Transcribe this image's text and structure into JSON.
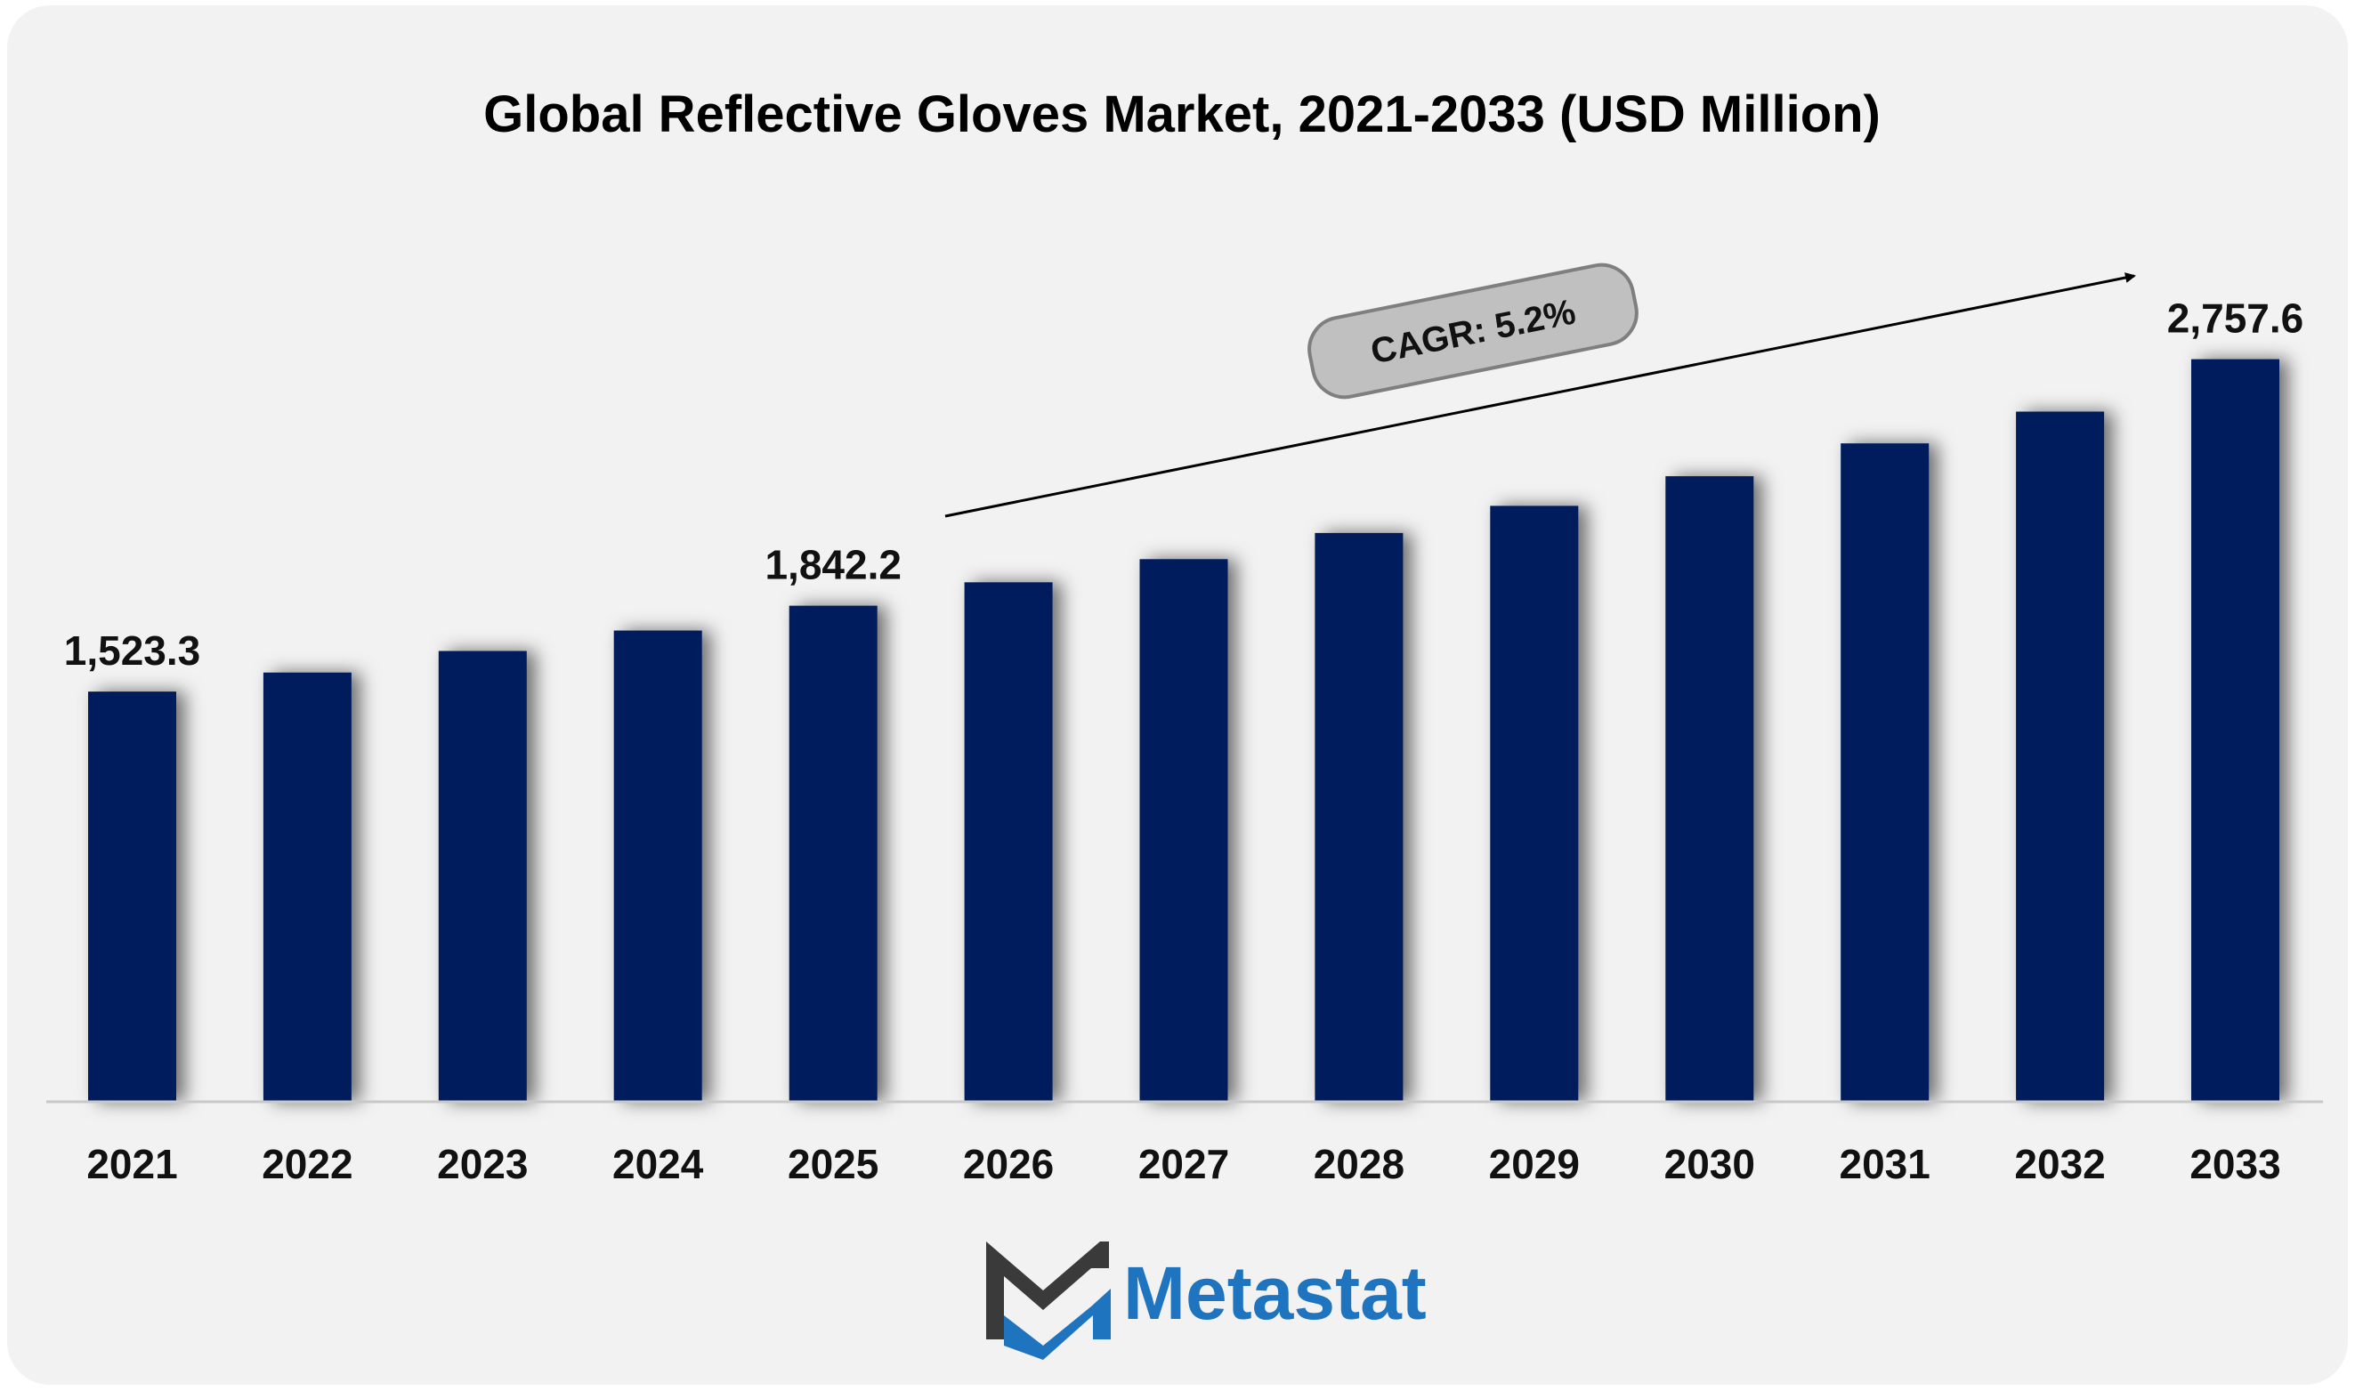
{
  "chart_data": {
    "type": "bar",
    "title": "Global Reflective Gloves Market, 2021-2033 (USD Million)",
    "categories": [
      "2021",
      "2022",
      "2023",
      "2024",
      "2025",
      "2026",
      "2027",
      "2028",
      "2029",
      "2030",
      "2031",
      "2032",
      "2033"
    ],
    "values": [
      1523.3,
      1594.0,
      1674.0,
      1750.0,
      1842.2,
      1929.0,
      2015.0,
      2112.0,
      2213.0,
      2323.0,
      2445.0,
      2563.0,
      2757.6
    ],
    "ylim": [
      0,
      3100
    ],
    "xlabel": "",
    "ylabel": "",
    "grid": false,
    "data_labels": [
      {
        "category": "2021",
        "text": "1,523.3"
      },
      {
        "category": "2025",
        "text": "1,842.2"
      },
      {
        "category": "2033",
        "text": "2,757.6"
      }
    ],
    "annotation": {
      "text": "CAGR: 5.2%",
      "from": "2025",
      "to": "2033"
    },
    "colors": {
      "bar": "#041E5C",
      "axis": "#c8c8c8",
      "annotation_fill": "#c0c0c0",
      "annotation_stroke": "#7f7f7f"
    }
  },
  "brand": {
    "name": "Metastat",
    "text_color": "#1E74BE",
    "mark_dark": "#3a3a3a",
    "mark_blue": "#1E74BE"
  }
}
